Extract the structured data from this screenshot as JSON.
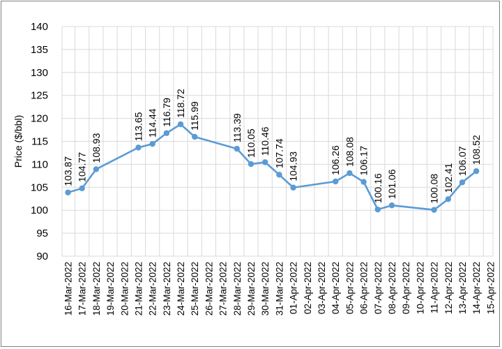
{
  "chart_data": {
    "type": "line",
    "title": "",
    "xlabel": "",
    "ylabel": "Price ($/bbl)",
    "ylim": [
      90,
      140
    ],
    "ytick_step": 5,
    "grid": "vertical and horizontal",
    "line_color": "#5b9bd5",
    "categories": [
      "16-Mar-2022",
      "17-Mar-2022",
      "18-Mar-2022",
      "19-Mar-2022",
      "20-Mar-2022",
      "21-Mar-2022",
      "22-Mar-2022",
      "23-Mar-2022",
      "24-Mar-2022",
      "25-Mar-2022",
      "26-Mar-2022",
      "27-Mar-2022",
      "28-Mar-2022",
      "29-Mar-2022",
      "30-Mar-2022",
      "31-Mar-2022",
      "01-Apr-2022",
      "02-Apr-2022",
      "03-Apr-2022",
      "04-Apr-2022",
      "05-Apr-2022",
      "06-Apr-2022",
      "07-Apr-2022",
      "08-Apr-2022",
      "09-Apr-2022",
      "10-Apr-2022",
      "11-Apr-2022",
      "12-Apr-2022",
      "13-Apr-2022",
      "14-Apr-2022",
      "15-Apr-2022"
    ],
    "points": [
      {
        "x": "16-Mar-2022",
        "y": 103.87
      },
      {
        "x": "17-Mar-2022",
        "y": 104.77
      },
      {
        "x": "18-Mar-2022",
        "y": 108.93
      },
      {
        "x": "21-Mar-2022",
        "y": 113.65
      },
      {
        "x": "22-Mar-2022",
        "y": 114.44
      },
      {
        "x": "23-Mar-2022",
        "y": 116.79
      },
      {
        "x": "24-Mar-2022",
        "y": 118.72
      },
      {
        "x": "25-Mar-2022",
        "y": 115.99
      },
      {
        "x": "28-Mar-2022",
        "y": 113.39
      },
      {
        "x": "29-Mar-2022",
        "y": 110.05
      },
      {
        "x": "30-Mar-2022",
        "y": 110.46
      },
      {
        "x": "31-Mar-2022",
        "y": 107.74
      },
      {
        "x": "01-Apr-2022",
        "y": 104.93
      },
      {
        "x": "04-Apr-2022",
        "y": 106.26
      },
      {
        "x": "05-Apr-2022",
        "y": 108.08
      },
      {
        "x": "06-Apr-2022",
        "y": 106.17
      },
      {
        "x": "07-Apr-2022",
        "y": 100.16
      },
      {
        "x": "08-Apr-2022",
        "y": 101.06
      },
      {
        "x": "11-Apr-2022",
        "y": 100.08
      },
      {
        "x": "12-Apr-2022",
        "y": 102.41
      },
      {
        "x": "13-Apr-2022",
        "y": 106.07
      },
      {
        "x": "14-Apr-2022",
        "y": 108.52
      }
    ]
  }
}
